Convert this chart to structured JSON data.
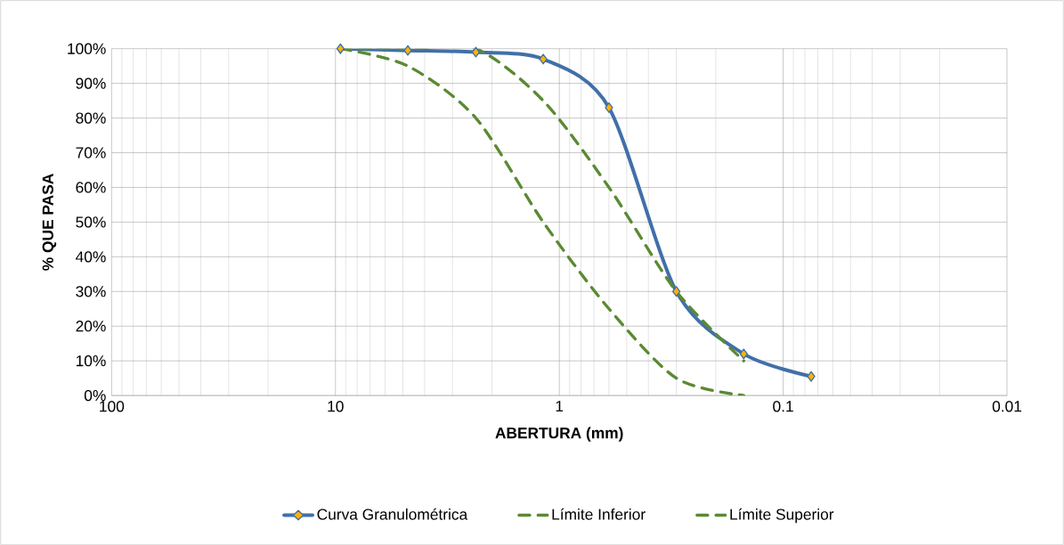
{
  "chart_data": {
    "type": "line",
    "xlabel": "ABERTURA (mm)",
    "ylabel": "% QUE PASA",
    "x": [
      9.5,
      4.75,
      2.36,
      1.18,
      0.6,
      0.3,
      0.15,
      0.075
    ],
    "series": [
      {
        "name": "Curva Granulométrica",
        "color": "#4170a8",
        "marker": "diamond",
        "line_style": "solid",
        "values": [
          100,
          99.5,
          99,
          97,
          83,
          30,
          12,
          5.5
        ]
      },
      {
        "name": "Límite Inferior",
        "color": "#5a8a32",
        "marker": "none",
        "line_style": "dashed",
        "x": [
          9.5,
          4.75,
          2.36,
          1.18,
          0.6,
          0.3,
          0.15
        ],
        "values": [
          100,
          95,
          80,
          50,
          25,
          5,
          0
        ]
      },
      {
        "name": "Límite Superior",
        "color": "#5a8a32",
        "marker": "none",
        "line_style": "dashed",
        "x": [
          9.5,
          4.75,
          2.36,
          1.18,
          0.6,
          0.3,
          0.15
        ],
        "values": [
          100,
          100,
          100,
          85,
          60,
          30,
          10
        ]
      }
    ],
    "log": "x",
    "xlim": [
      100,
      0.01
    ],
    "xticks": [
      100,
      10,
      1,
      0.1,
      0.01
    ],
    "ylim": [
      0,
      100
    ],
    "yticks": [
      {
        "value": 0,
        "label": "0%"
      },
      {
        "value": 10,
        "label": "10%"
      },
      {
        "value": 20,
        "label": "20%"
      },
      {
        "value": 30,
        "label": "30%"
      },
      {
        "value": 40,
        "label": "40%"
      },
      {
        "value": 50,
        "label": "50%"
      },
      {
        "value": 60,
        "label": "60%"
      },
      {
        "value": 70,
        "label": "70%"
      },
      {
        "value": 80,
        "label": "80%"
      },
      {
        "value": 90,
        "label": "90%"
      },
      {
        "value": 100,
        "label": "100%"
      }
    ],
    "grid": true,
    "legend": "bottom"
  }
}
